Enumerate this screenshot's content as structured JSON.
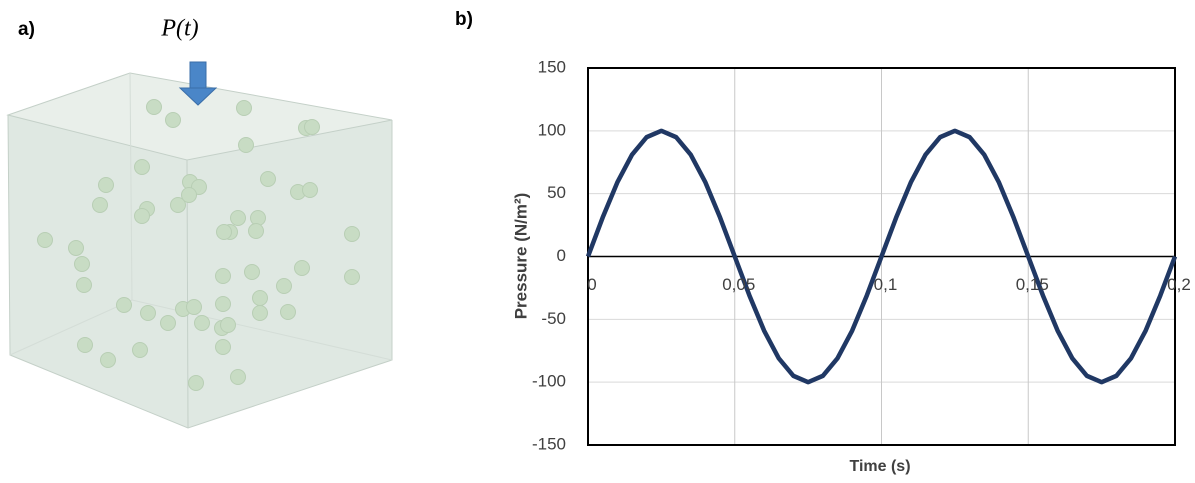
{
  "panel_a": {
    "label": "a)",
    "load_label": "P(t)"
  },
  "chart_data": {
    "type": "line",
    "panel_label": "b)",
    "x_label": "Time (s)",
    "y_label": "Pressure (N/m²)",
    "x": [
      0,
      0.005,
      0.01,
      0.015,
      0.02,
      0.025,
      0.03,
      0.035,
      0.04,
      0.045,
      0.05,
      0.055,
      0.06,
      0.065,
      0.07,
      0.075,
      0.08,
      0.085,
      0.09,
      0.095,
      0.1,
      0.105,
      0.11,
      0.115,
      0.12,
      0.125,
      0.13,
      0.135,
      0.14,
      0.145,
      0.15,
      0.155,
      0.16,
      0.165,
      0.17,
      0.175,
      0.18,
      0.185,
      0.19,
      0.195,
      0.2
    ],
    "series": [
      {
        "name": "Pressure",
        "color": "#203864",
        "values": [
          0,
          31,
          59,
          81,
          95,
          100,
          95,
          81,
          59,
          31,
          0,
          -31,
          -59,
          -81,
          -95,
          -100,
          -95,
          -81,
          -59,
          -31,
          0,
          31,
          59,
          81,
          95,
          100,
          95,
          81,
          59,
          31,
          0,
          -31,
          -59,
          -81,
          -95,
          -100,
          -95,
          -81,
          -59,
          -31,
          0
        ]
      }
    ],
    "xlim": [
      0,
      0.2
    ],
    "xticks": [
      0,
      {
        "value": 0.05,
        "label": "0,05"
      },
      {
        "value": 0.1,
        "label": "0,1"
      },
      {
        "value": 0.15,
        "label": "0,15"
      },
      {
        "value": 0.2,
        "label": "0,2"
      }
    ],
    "ylim": [
      -150,
      150
    ],
    "yticks": [
      -150,
      -100,
      -50,
      0,
      50,
      100,
      150
    ],
    "grid": true
  }
}
